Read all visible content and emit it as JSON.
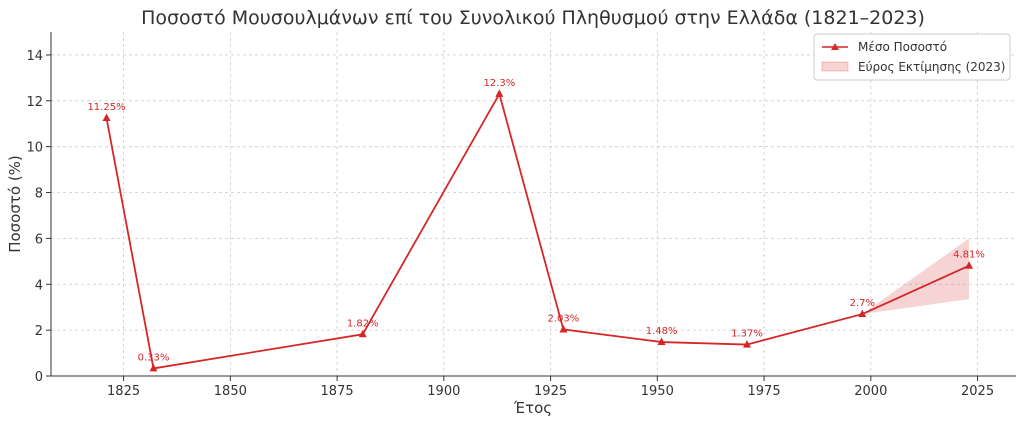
{
  "chart_data": {
    "type": "line",
    "title": "Ποσοστό Μουσουλμάνων επί του Συνολικού Πληθυσμού στην Ελλάδα (1821–2023)",
    "xlabel": "Έτος",
    "ylabel": "Ποσοστό (%)",
    "xlim": [
      1808,
      2034
    ],
    "ylim": [
      0,
      15
    ],
    "xticks": [
      1825,
      1850,
      1875,
      1900,
      1925,
      1950,
      1975,
      2000,
      2025
    ],
    "yticks": [
      0,
      2,
      4,
      6,
      8,
      10,
      12,
      14
    ],
    "grid": true,
    "legend_position": "top-right",
    "line_color": "#d62728",
    "band_color": "#d62728",
    "series": [
      {
        "name": "Μέσο Ποσοστό",
        "x": [
          1821,
          1832,
          1881,
          1913,
          1928,
          1951,
          1971,
          1998,
          2023
        ],
        "y": [
          11.25,
          0.33,
          1.82,
          12.3,
          2.03,
          1.48,
          1.37,
          2.7,
          4.81
        ],
        "labels": [
          "11.25%",
          "0.33%",
          "1.82%",
          "12.3%",
          "2.03%",
          "1.48%",
          "1.37%",
          "2.7%",
          "4.81%"
        ]
      }
    ],
    "band": {
      "name": "Εύρος Εκτίμησης (2023)",
      "x": [
        1998,
        2023
      ],
      "lower": [
        2.7,
        3.35
      ],
      "upper": [
        2.7,
        6.0
      ]
    }
  }
}
